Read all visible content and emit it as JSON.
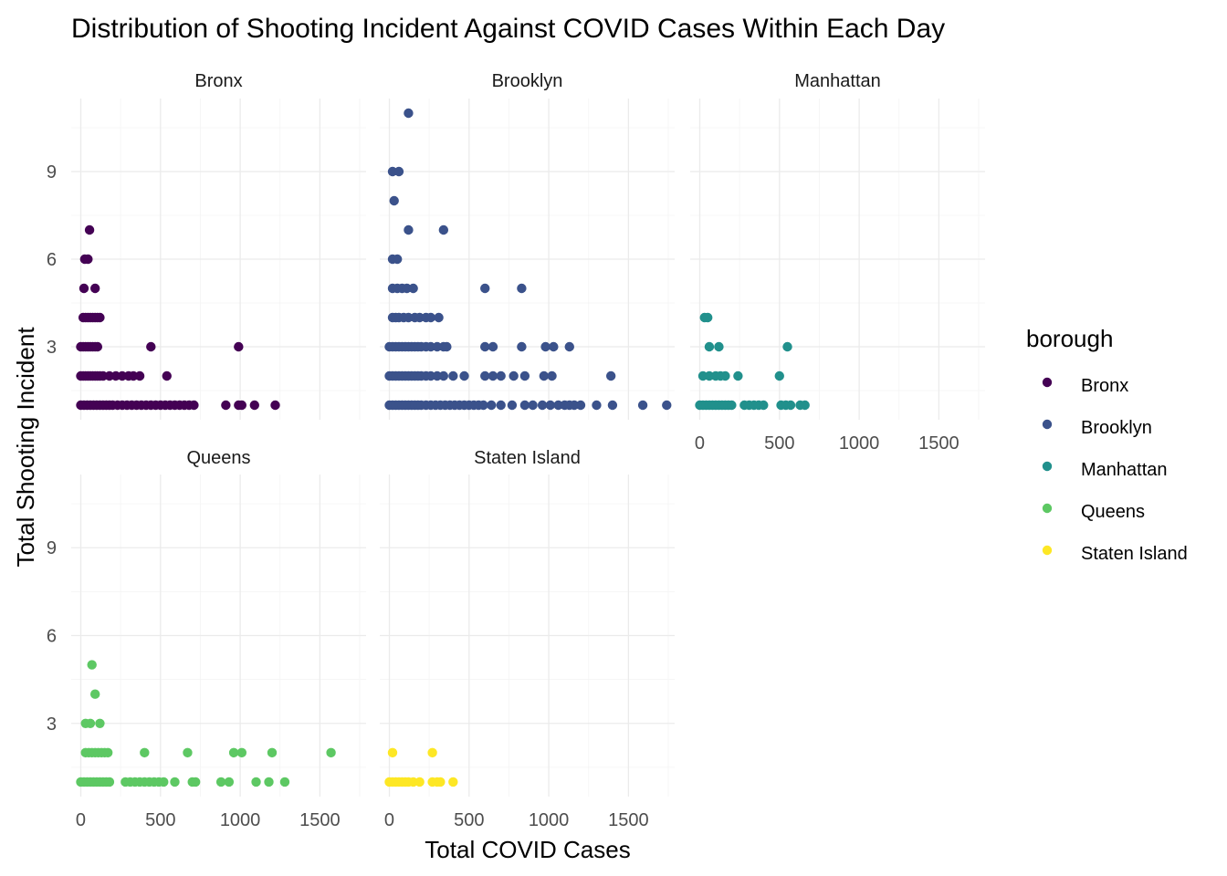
{
  "chart_data": {
    "type": "scatter",
    "title": "Distribution of Shooting Incident Against COVID Cases Within Each Day",
    "xlabel": "Total COVID Cases",
    "ylabel": "Total Shooting Incident",
    "xlim": [
      -60,
      1790
    ],
    "ylim": [
      0.5,
      11.5
    ],
    "x_ticks": [
      0,
      500,
      1000,
      1500
    ],
    "y_ticks": [
      3,
      6,
      9
    ],
    "grid": true,
    "legend": {
      "title": "borough",
      "placement": "right"
    },
    "facet_by": "borough",
    "series": [
      {
        "name": "Bronx",
        "color": "#440154",
        "points": [
          [
            0,
            1
          ],
          [
            20,
            1
          ],
          [
            40,
            1
          ],
          [
            60,
            1
          ],
          [
            80,
            1
          ],
          [
            100,
            1
          ],
          [
            120,
            1
          ],
          [
            140,
            1
          ],
          [
            160,
            1
          ],
          [
            180,
            1
          ],
          [
            200,
            1
          ],
          [
            230,
            1
          ],
          [
            260,
            1
          ],
          [
            290,
            1
          ],
          [
            320,
            1
          ],
          [
            350,
            1
          ],
          [
            380,
            1
          ],
          [
            410,
            1
          ],
          [
            440,
            1
          ],
          [
            470,
            1
          ],
          [
            500,
            1
          ],
          [
            530,
            1
          ],
          [
            560,
            1
          ],
          [
            590,
            1
          ],
          [
            620,
            1
          ],
          [
            650,
            1
          ],
          [
            680,
            1
          ],
          [
            710,
            1
          ],
          [
            910,
            1
          ],
          [
            990,
            1
          ],
          [
            1010,
            1
          ],
          [
            1090,
            1
          ],
          [
            1220,
            1
          ],
          [
            0,
            2
          ],
          [
            15,
            2
          ],
          [
            30,
            2
          ],
          [
            45,
            2
          ],
          [
            60,
            2
          ],
          [
            75,
            2
          ],
          [
            90,
            2
          ],
          [
            105,
            2
          ],
          [
            120,
            2
          ],
          [
            140,
            2
          ],
          [
            180,
            2
          ],
          [
            220,
            2
          ],
          [
            260,
            2
          ],
          [
            300,
            2
          ],
          [
            330,
            2
          ],
          [
            370,
            2
          ],
          [
            540,
            2
          ],
          [
            0,
            3
          ],
          [
            15,
            3
          ],
          [
            30,
            3
          ],
          [
            45,
            3
          ],
          [
            60,
            3
          ],
          [
            75,
            3
          ],
          [
            90,
            3
          ],
          [
            105,
            3
          ],
          [
            440,
            3
          ],
          [
            990,
            3
          ],
          [
            15,
            4
          ],
          [
            30,
            4
          ],
          [
            45,
            4
          ],
          [
            60,
            4
          ],
          [
            75,
            4
          ],
          [
            90,
            4
          ],
          [
            105,
            4
          ],
          [
            120,
            4
          ],
          [
            20,
            5
          ],
          [
            90,
            5
          ],
          [
            25,
            6
          ],
          [
            45,
            6
          ],
          [
            55,
            7
          ]
        ]
      },
      {
        "name": "Brooklyn",
        "color": "#3b528b",
        "points": [
          [
            0,
            1
          ],
          [
            20,
            1
          ],
          [
            40,
            1
          ],
          [
            60,
            1
          ],
          [
            80,
            1
          ],
          [
            100,
            1
          ],
          [
            120,
            1
          ],
          [
            140,
            1
          ],
          [
            160,
            1
          ],
          [
            180,
            1
          ],
          [
            200,
            1
          ],
          [
            230,
            1
          ],
          [
            260,
            1
          ],
          [
            290,
            1
          ],
          [
            320,
            1
          ],
          [
            350,
            1
          ],
          [
            380,
            1
          ],
          [
            410,
            1
          ],
          [
            440,
            1
          ],
          [
            470,
            1
          ],
          [
            500,
            1
          ],
          [
            530,
            1
          ],
          [
            560,
            1
          ],
          [
            590,
            1
          ],
          [
            640,
            1
          ],
          [
            700,
            1
          ],
          [
            770,
            1
          ],
          [
            850,
            1
          ],
          [
            900,
            1
          ],
          [
            960,
            1
          ],
          [
            1010,
            1
          ],
          [
            1060,
            1
          ],
          [
            1100,
            1
          ],
          [
            1130,
            1
          ],
          [
            1160,
            1
          ],
          [
            1200,
            1
          ],
          [
            1300,
            1
          ],
          [
            1400,
            1
          ],
          [
            1590,
            1
          ],
          [
            1740,
            1
          ],
          [
            0,
            2
          ],
          [
            20,
            2
          ],
          [
            40,
            2
          ],
          [
            60,
            2
          ],
          [
            80,
            2
          ],
          [
            100,
            2
          ],
          [
            120,
            2
          ],
          [
            140,
            2
          ],
          [
            160,
            2
          ],
          [
            180,
            2
          ],
          [
            200,
            2
          ],
          [
            230,
            2
          ],
          [
            260,
            2
          ],
          [
            300,
            2
          ],
          [
            340,
            2
          ],
          [
            400,
            2
          ],
          [
            470,
            2
          ],
          [
            600,
            2
          ],
          [
            650,
            2
          ],
          [
            700,
            2
          ],
          [
            780,
            2
          ],
          [
            850,
            2
          ],
          [
            970,
            2
          ],
          [
            1020,
            2
          ],
          [
            1390,
            2
          ],
          [
            0,
            3
          ],
          [
            20,
            3
          ],
          [
            40,
            3
          ],
          [
            60,
            3
          ],
          [
            80,
            3
          ],
          [
            100,
            3
          ],
          [
            120,
            3
          ],
          [
            140,
            3
          ],
          [
            160,
            3
          ],
          [
            180,
            3
          ],
          [
            200,
            3
          ],
          [
            230,
            3
          ],
          [
            260,
            3
          ],
          [
            300,
            3
          ],
          [
            340,
            3
          ],
          [
            360,
            3
          ],
          [
            600,
            3
          ],
          [
            650,
            3
          ],
          [
            830,
            3
          ],
          [
            980,
            3
          ],
          [
            1030,
            3
          ],
          [
            1130,
            3
          ],
          [
            20,
            4
          ],
          [
            40,
            4
          ],
          [
            60,
            4
          ],
          [
            90,
            4
          ],
          [
            120,
            4
          ],
          [
            160,
            4
          ],
          [
            190,
            4
          ],
          [
            230,
            4
          ],
          [
            260,
            4
          ],
          [
            310,
            4
          ],
          [
            20,
            5
          ],
          [
            50,
            5
          ],
          [
            80,
            5
          ],
          [
            110,
            5
          ],
          [
            150,
            5
          ],
          [
            600,
            5
          ],
          [
            830,
            5
          ],
          [
            20,
            6
          ],
          [
            50,
            6
          ],
          [
            120,
            7
          ],
          [
            340,
            7
          ],
          [
            30,
            8
          ],
          [
            20,
            9
          ],
          [
            60,
            9
          ],
          [
            120,
            11
          ]
        ]
      },
      {
        "name": "Manhattan",
        "color": "#21908c",
        "points": [
          [
            0,
            1
          ],
          [
            20,
            1
          ],
          [
            40,
            1
          ],
          [
            60,
            1
          ],
          [
            80,
            1
          ],
          [
            100,
            1
          ],
          [
            120,
            1
          ],
          [
            140,
            1
          ],
          [
            160,
            1
          ],
          [
            180,
            1
          ],
          [
            200,
            1
          ],
          [
            280,
            1
          ],
          [
            310,
            1
          ],
          [
            340,
            1
          ],
          [
            370,
            1
          ],
          [
            400,
            1
          ],
          [
            510,
            1
          ],
          [
            540,
            1
          ],
          [
            570,
            1
          ],
          [
            630,
            1
          ],
          [
            660,
            1
          ],
          [
            20,
            2
          ],
          [
            60,
            2
          ],
          [
            100,
            2
          ],
          [
            130,
            2
          ],
          [
            160,
            2
          ],
          [
            240,
            2
          ],
          [
            500,
            2
          ],
          [
            60,
            3
          ],
          [
            120,
            3
          ],
          [
            550,
            3
          ],
          [
            30,
            4
          ],
          [
            50,
            4
          ]
        ]
      },
      {
        "name": "Queens",
        "color": "#5dc863",
        "points": [
          [
            0,
            1
          ],
          [
            20,
            1
          ],
          [
            40,
            1
          ],
          [
            60,
            1
          ],
          [
            80,
            1
          ],
          [
            100,
            1
          ],
          [
            120,
            1
          ],
          [
            140,
            1
          ],
          [
            160,
            1
          ],
          [
            180,
            1
          ],
          [
            280,
            1
          ],
          [
            310,
            1
          ],
          [
            340,
            1
          ],
          [
            370,
            1
          ],
          [
            400,
            1
          ],
          [
            430,
            1
          ],
          [
            460,
            1
          ],
          [
            490,
            1
          ],
          [
            520,
            1
          ],
          [
            590,
            1
          ],
          [
            700,
            1
          ],
          [
            720,
            1
          ],
          [
            880,
            1
          ],
          [
            930,
            1
          ],
          [
            1100,
            1
          ],
          [
            1180,
            1
          ],
          [
            1280,
            1
          ],
          [
            30,
            2
          ],
          [
            50,
            2
          ],
          [
            70,
            2
          ],
          [
            90,
            2
          ],
          [
            110,
            2
          ],
          [
            130,
            2
          ],
          [
            150,
            2
          ],
          [
            170,
            2
          ],
          [
            400,
            2
          ],
          [
            670,
            2
          ],
          [
            960,
            2
          ],
          [
            1010,
            2
          ],
          [
            1200,
            2
          ],
          [
            1570,
            2
          ],
          [
            30,
            3
          ],
          [
            60,
            3
          ],
          [
            120,
            3
          ],
          [
            90,
            4
          ],
          [
            70,
            5
          ]
        ]
      },
      {
        "name": "Staten Island",
        "color": "#fde725",
        "points": [
          [
            0,
            1
          ],
          [
            20,
            1
          ],
          [
            40,
            1
          ],
          [
            60,
            1
          ],
          [
            80,
            1
          ],
          [
            100,
            1
          ],
          [
            120,
            1
          ],
          [
            150,
            1
          ],
          [
            190,
            1
          ],
          [
            270,
            1
          ],
          [
            300,
            1
          ],
          [
            320,
            1
          ],
          [
            400,
            1
          ],
          [
            20,
            2
          ],
          [
            270,
            2
          ]
        ]
      }
    ]
  }
}
